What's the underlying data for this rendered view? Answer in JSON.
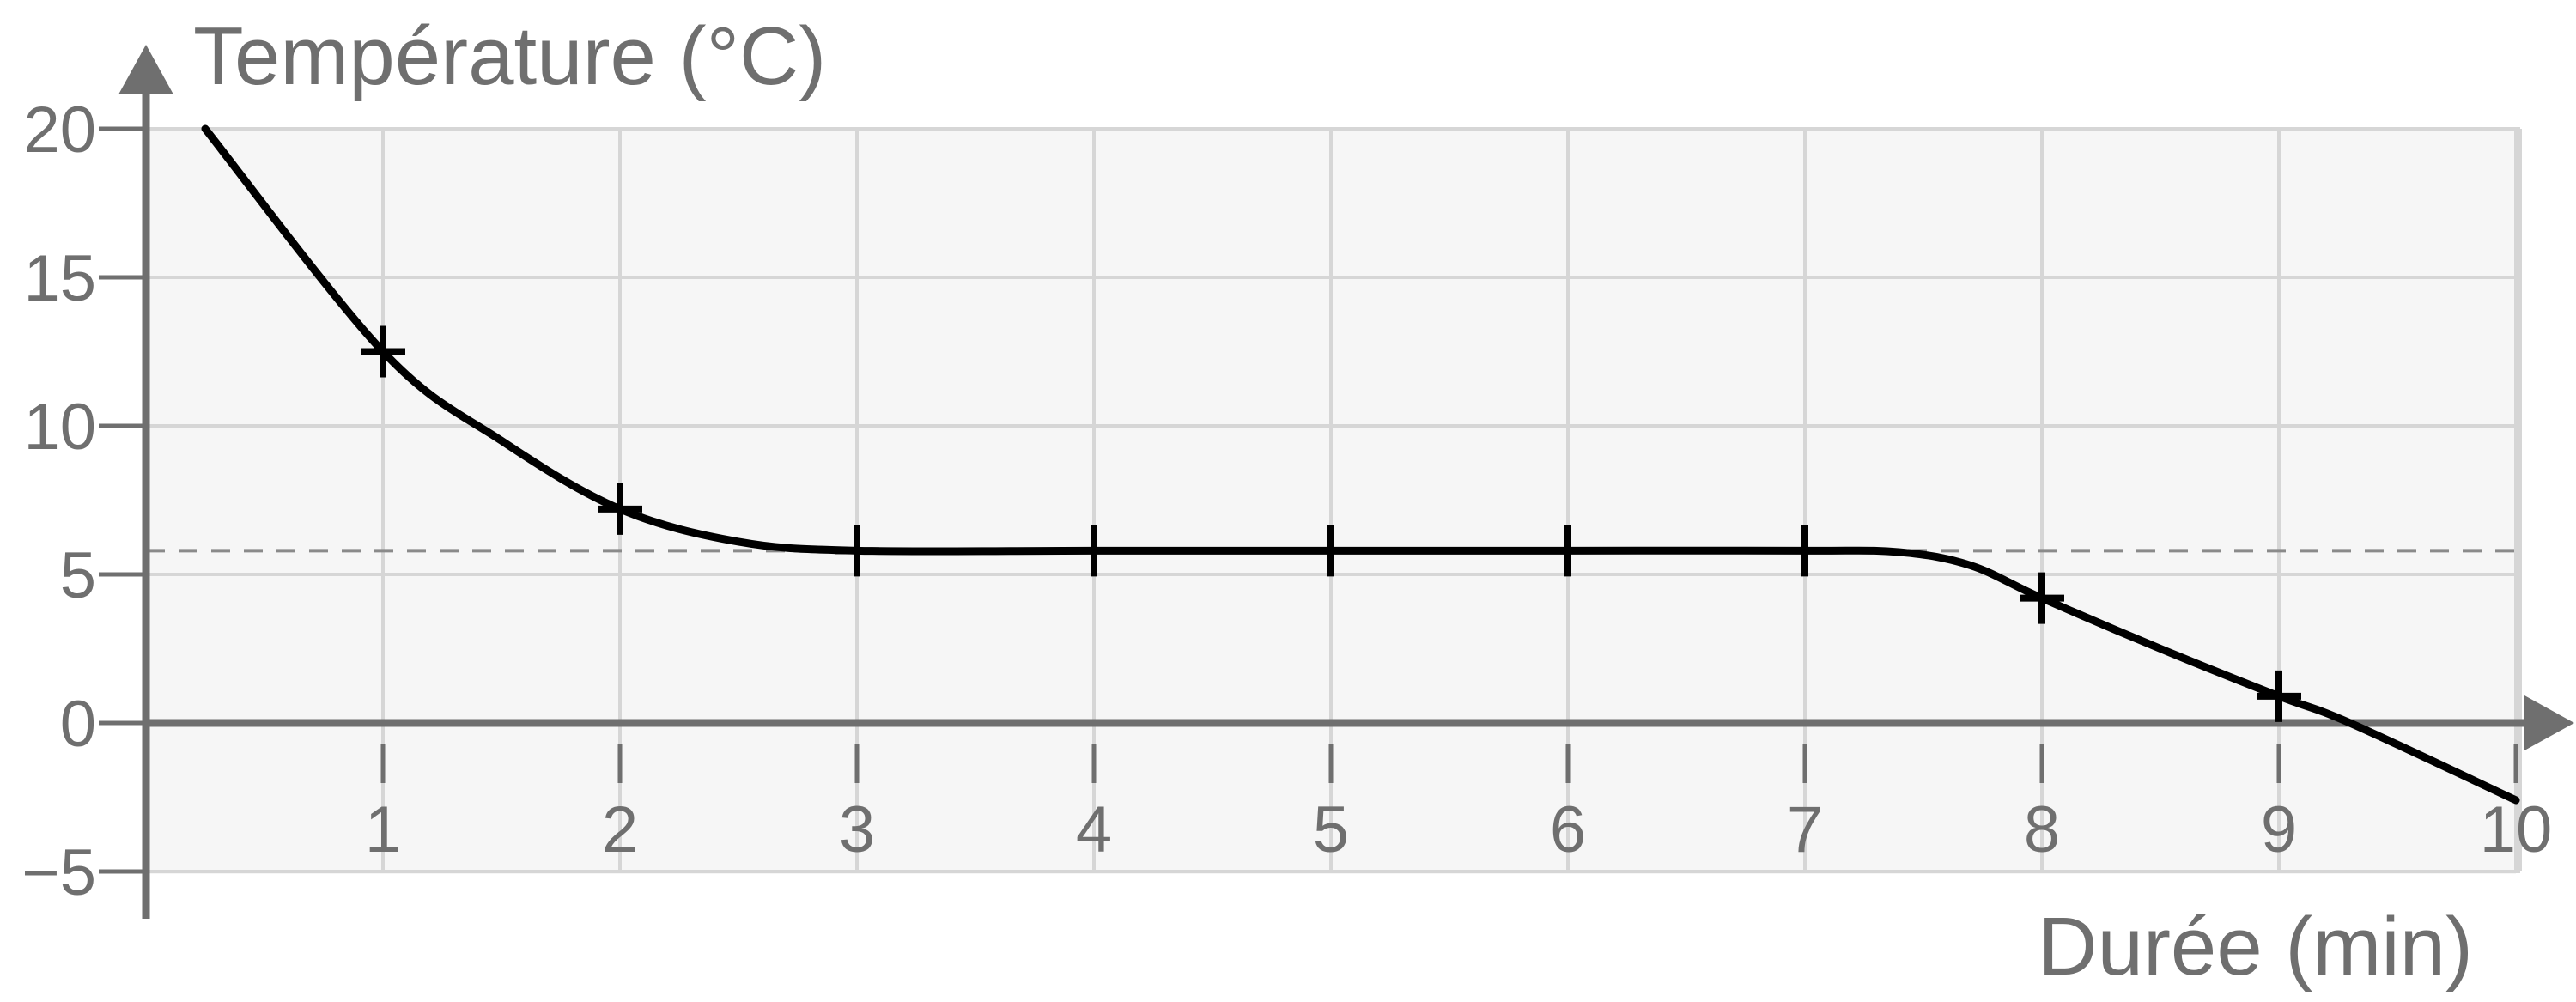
{
  "chart_data": {
    "type": "line",
    "ylabel": "Température (°C)",
    "xlabel": "Durée (min)",
    "xlim": [
      0,
      10
    ],
    "ylim": [
      -5,
      20
    ],
    "xticks": [
      "1",
      "2",
      "3",
      "4",
      "5",
      "6",
      "7",
      "8",
      "9",
      "10"
    ],
    "yticks": [
      "20",
      "15",
      "10",
      "5",
      "0",
      "−5"
    ],
    "grid": true,
    "reference_line": {
      "y": 5.8,
      "style": "dashed"
    },
    "series": [
      {
        "x": [
          1,
          2,
          3,
          4,
          5,
          6,
          7,
          8,
          9
        ],
        "y": [
          12.5,
          7.2,
          5.8,
          5.8,
          5.8,
          5.8,
          5.8,
          4.2,
          0.9
        ]
      }
    ],
    "curve": {
      "x": [
        0.25,
        1,
        1.5,
        2,
        2.5,
        3,
        4,
        5,
        6,
        7,
        7.4,
        7.7,
        8,
        8.5,
        9,
        9.3,
        10
      ],
      "y": [
        20,
        12.5,
        9.5,
        7.2,
        6.1,
        5.8,
        5.8,
        5.8,
        5.8,
        5.8,
        5.75,
        5.3,
        4.2,
        2.5,
        0.9,
        0,
        -2.6
      ]
    },
    "colors": {
      "line": "#000000",
      "axis": "#6f6f6f",
      "grid": "#d6d6d6",
      "plot_background": "#f6f6f6",
      "reference": "#8a8a8a"
    }
  }
}
